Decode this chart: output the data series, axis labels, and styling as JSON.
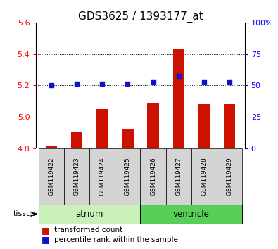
{
  "title": "GDS3625 / 1393177_at",
  "samples": [
    "GSM119422",
    "GSM119423",
    "GSM119424",
    "GSM119425",
    "GSM119426",
    "GSM119427",
    "GSM119428",
    "GSM119429"
  ],
  "groups": [
    "atrium",
    "atrium",
    "atrium",
    "atrium",
    "ventricle",
    "ventricle",
    "ventricle",
    "ventricle"
  ],
  "group_labels": [
    "atrium",
    "ventricle"
  ],
  "group_colors": [
    "#c8f0b8",
    "#58d058"
  ],
  "transformed_count": [
    4.81,
    4.9,
    5.05,
    4.92,
    5.09,
    5.43,
    5.08,
    5.08
  ],
  "percentile_rank": [
    5.2,
    5.21,
    5.21,
    5.21,
    5.22,
    5.26,
    5.22,
    5.22
  ],
  "ylim": [
    4.8,
    5.6
  ],
  "yticks_left": [
    4.8,
    5.0,
    5.2,
    5.4,
    5.6
  ],
  "yticks_right": [
    0,
    25,
    50,
    75,
    100
  ],
  "bar_color": "#cc1100",
  "dot_color": "#1111cc",
  "bar_bottom": 4.8,
  "grid_lines": [
    5.0,
    5.2,
    5.4
  ],
  "legend_items": [
    "transformed count",
    "percentile rank within the sample"
  ],
  "legend_colors": [
    "#cc1100",
    "#1111cc"
  ],
  "tissue_label": "tissue",
  "title_fontsize": 11,
  "tick_fontsize": 8,
  "sample_fontsize": 6.5,
  "legend_fontsize": 7.5,
  "group_fontsize": 8.5,
  "bar_width": 0.45
}
